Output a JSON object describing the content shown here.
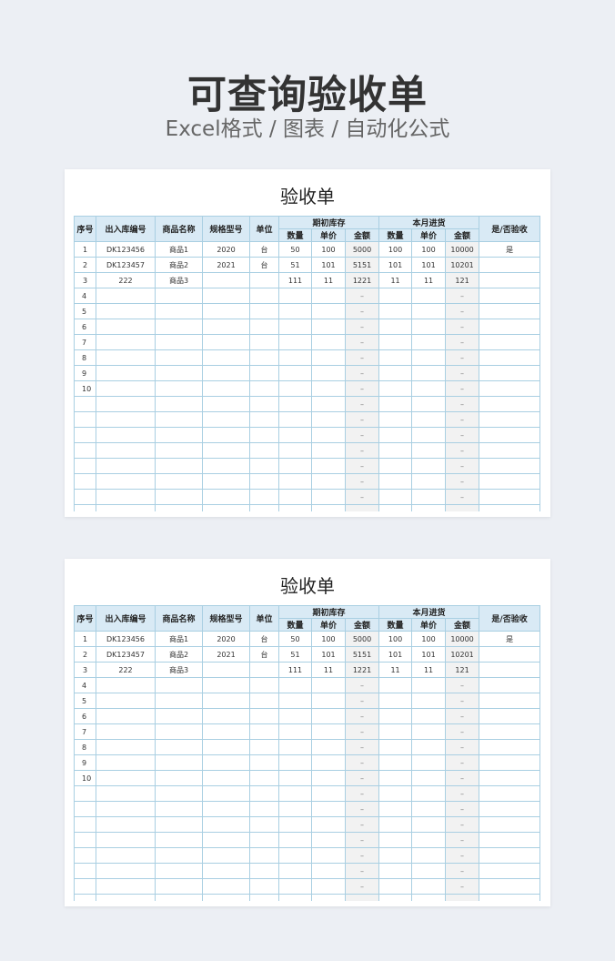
{
  "hero": {
    "title": "可查询验收单",
    "subtitle": "Excel格式 / 图表 / 自动化公式"
  },
  "sheet": {
    "title": "验收单",
    "headers": {
      "index": "序号",
      "code": "出入库编号",
      "name": "商品名称",
      "spec": "规格型号",
      "unit": "单位",
      "opening_group": "期初库存",
      "purchase_group": "本月进货",
      "accepted": "是/否验收",
      "qty": "数量",
      "price": "单价",
      "amount": "金额"
    },
    "rows": [
      [
        "1",
        "DK123456",
        "商品1",
        "2020",
        "台",
        "50",
        "100",
        "5000",
        "100",
        "100",
        "10000",
        "是"
      ],
      [
        "2",
        "DK123457",
        "商品2",
        "2021",
        "台",
        "51",
        "101",
        "5151",
        "101",
        "101",
        "10201",
        ""
      ],
      [
        "3",
        "222",
        "商品3",
        "",
        "",
        "111",
        "11",
        "1221",
        "11",
        "11",
        "121",
        ""
      ],
      [
        "4",
        "",
        "",
        "",
        "",
        "",
        "",
        "–",
        "",
        "",
        "–",
        ""
      ],
      [
        "5",
        "",
        "",
        "",
        "",
        "",
        "",
        "–",
        "",
        "",
        "–",
        ""
      ],
      [
        "6",
        "",
        "",
        "",
        "",
        "",
        "",
        "–",
        "",
        "",
        "–",
        ""
      ],
      [
        "7",
        "",
        "",
        "",
        "",
        "",
        "",
        "–",
        "",
        "",
        "–",
        ""
      ],
      [
        "8",
        "",
        "",
        "",
        "",
        "",
        "",
        "–",
        "",
        "",
        "–",
        ""
      ],
      [
        "9",
        "",
        "",
        "",
        "",
        "",
        "",
        "–",
        "",
        "",
        "–",
        ""
      ],
      [
        "10",
        "",
        "",
        "",
        "",
        "",
        "",
        "–",
        "",
        "",
        "–",
        ""
      ],
      [
        "",
        "",
        "",
        "",
        "",
        "",
        "",
        "–",
        "",
        "",
        "–",
        ""
      ],
      [
        "",
        "",
        "",
        "",
        "",
        "",
        "",
        "–",
        "",
        "",
        "–",
        ""
      ],
      [
        "",
        "",
        "",
        "",
        "",
        "",
        "",
        "–",
        "",
        "",
        "–",
        ""
      ],
      [
        "",
        "",
        "",
        "",
        "",
        "",
        "",
        "–",
        "",
        "",
        "–",
        ""
      ],
      [
        "",
        "",
        "",
        "",
        "",
        "",
        "",
        "–",
        "",
        "",
        "–",
        ""
      ],
      [
        "",
        "",
        "",
        "",
        "",
        "",
        "",
        "–",
        "",
        "",
        "–",
        ""
      ],
      [
        "",
        "",
        "",
        "",
        "",
        "",
        "",
        "–",
        "",
        "",
        "–",
        ""
      ],
      [
        "",
        "",
        "",
        "",
        "",
        "",
        "",
        "–",
        "",
        "",
        "–",
        ""
      ]
    ]
  },
  "colors": {
    "background": "#eceff4",
    "header_fill": "#d9eaf5",
    "grid": "#a9cfe2",
    "formula_fill": "#f2f2f2"
  }
}
